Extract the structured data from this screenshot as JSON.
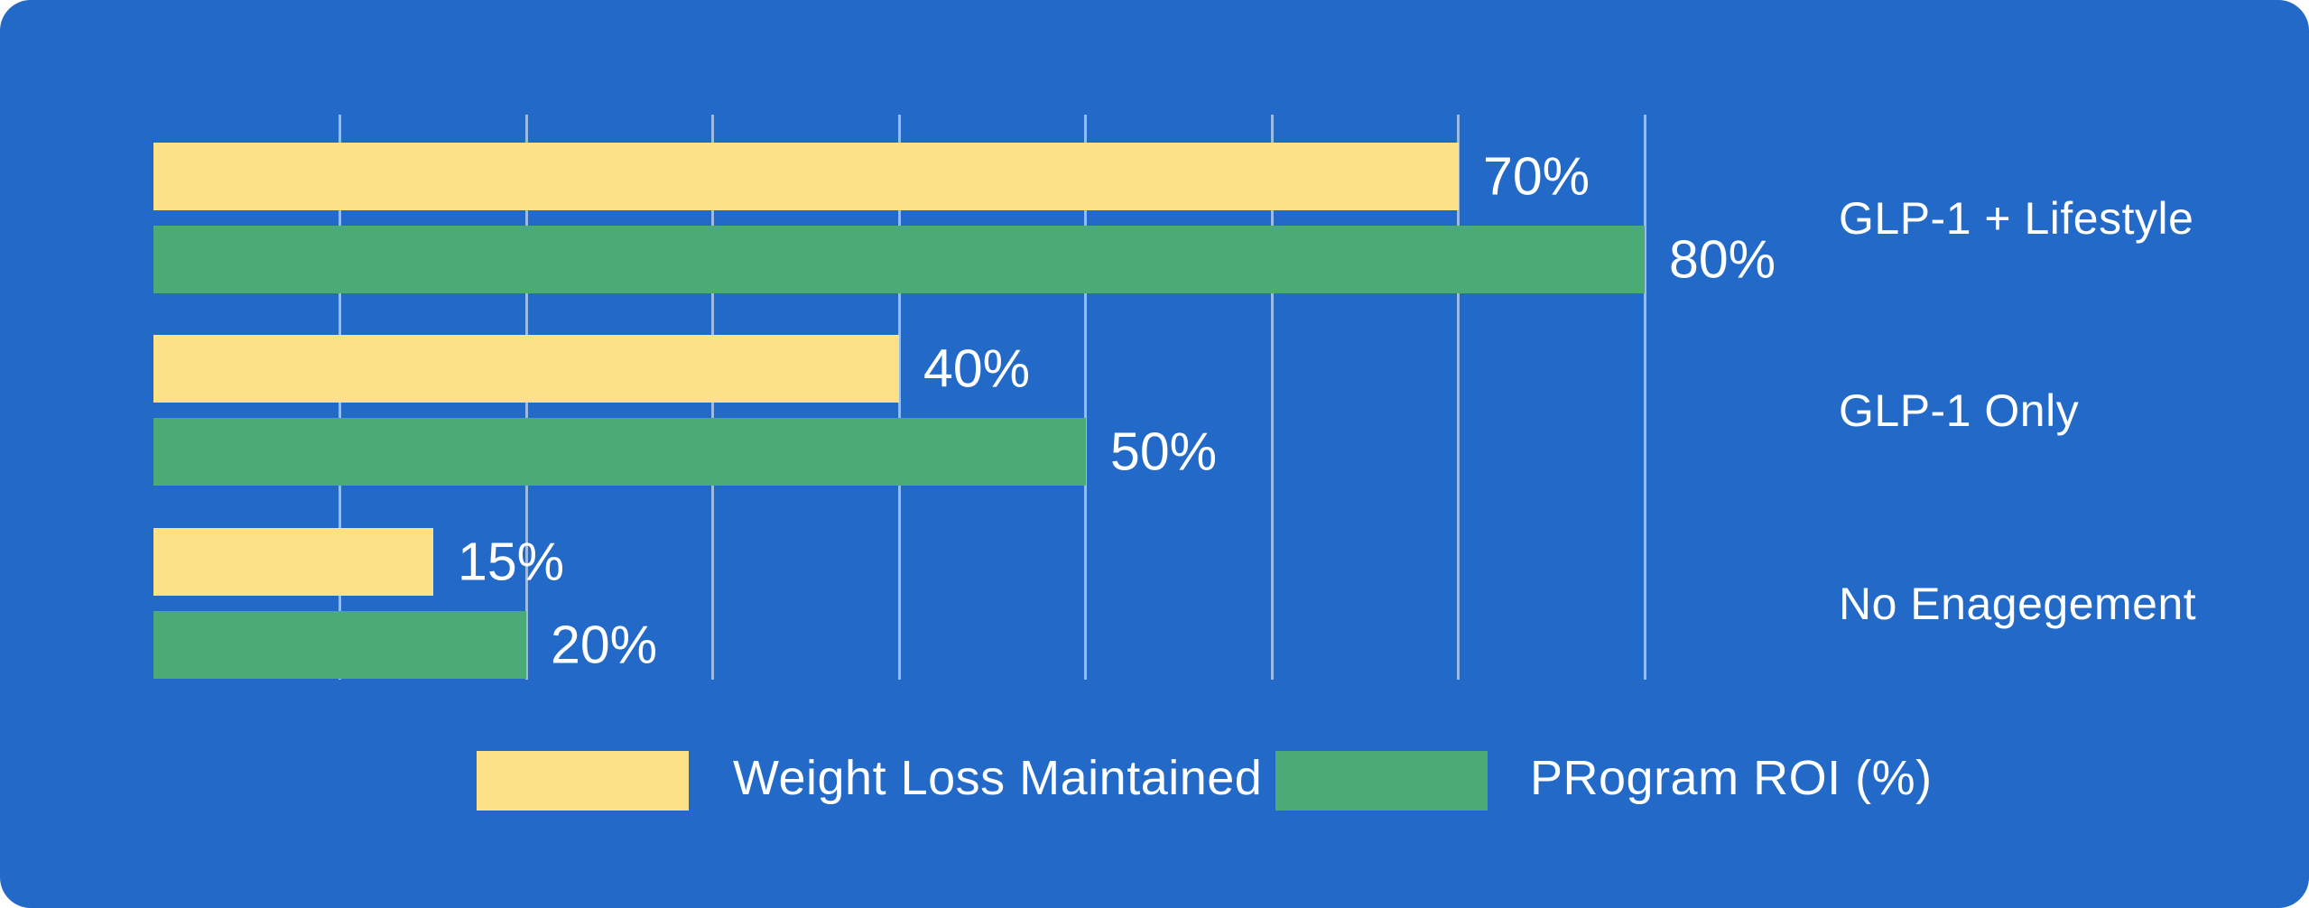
{
  "colors": {
    "card_background": "#2269C8",
    "page_background": "#FFFFFF",
    "gridline": "rgba(255,255,255,0.55)",
    "text": "#FFFFFF"
  },
  "chart_data": {
    "type": "bar",
    "orientation": "horizontal",
    "title": "",
    "xlabel": "",
    "ylabel": "",
    "xlim": [
      0,
      100
    ],
    "grid": true,
    "gridlines": [
      10,
      20,
      30,
      40,
      50,
      60,
      70,
      80
    ],
    "legend_position": "bottom",
    "value_suffix": "%",
    "categories": [
      "GLP-1 + Lifestyle",
      "GLP-1 Only",
      "No Enagegement"
    ],
    "series": [
      {
        "name": "Weight Loss Maintained",
        "color": "#FDE189",
        "values": [
          70,
          40,
          15
        ]
      },
      {
        "name": "PRogram ROI (%)",
        "color": "#4AAB77",
        "values": [
          80,
          50,
          20
        ]
      }
    ],
    "value_labels": [
      [
        "70%",
        "40%",
        "15%"
      ],
      [
        "80%",
        "50%",
        "20%"
      ]
    ]
  }
}
